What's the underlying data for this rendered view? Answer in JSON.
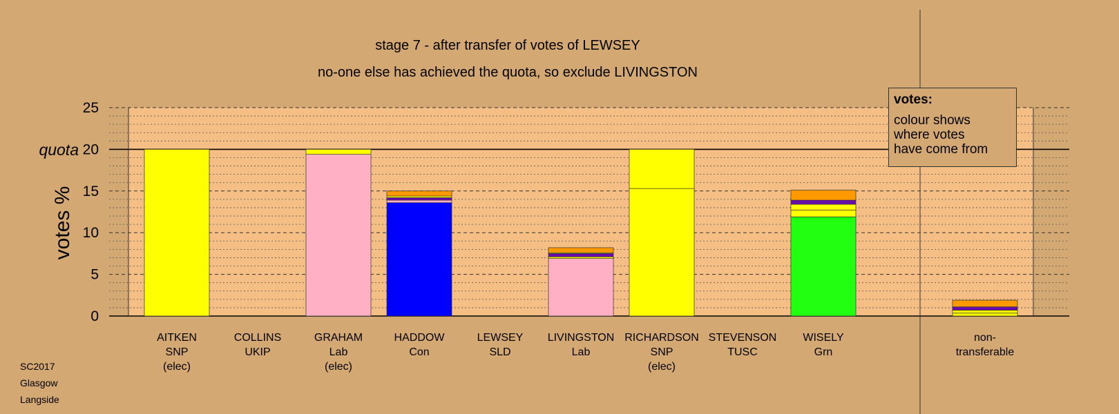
{
  "title": "stage 7 - after transfer of votes of LEWSEY",
  "subtitle": "no-one else has achieved the quota, so exclude LIVINGSTON",
  "legend": {
    "title": "votes:",
    "lines": [
      "colour shows",
      "where votes",
      "have come from"
    ]
  },
  "corner_info": [
    "SC2017",
    "Glasgow",
    "Langside"
  ],
  "colors": {
    "background": "#d4a873",
    "plot_background": "#f5be84",
    "SNP": "#ffff00",
    "Lab": "#ffb0c4",
    "Con": "#0000ff",
    "Grn": "#22ff11",
    "purple": "#6a0dad",
    "orange": "#ff9900"
  },
  "chart_data": {
    "type": "bar",
    "stacked": true,
    "ylabel": "votes %",
    "quota_label": "quota",
    "quota": 20,
    "ylim": [
      0,
      25
    ],
    "yticks": [
      0,
      5,
      10,
      15,
      20,
      25
    ],
    "grid": true,
    "categories": [
      {
        "name": "AITKEN",
        "party": "SNP",
        "status": "(elec)"
      },
      {
        "name": "COLLINS",
        "party": "UKIP",
        "status": ""
      },
      {
        "name": "GRAHAM",
        "party": "Lab",
        "status": "(elec)"
      },
      {
        "name": "HADDOW",
        "party": "Con",
        "status": ""
      },
      {
        "name": "LEWSEY",
        "party": "SLD",
        "status": ""
      },
      {
        "name": "LIVINGSTON",
        "party": "Lab",
        "status": ""
      },
      {
        "name": "RICHARDSON",
        "party": "SNP",
        "status": "(elec)"
      },
      {
        "name": "STEVENSON",
        "party": "TUSC",
        "status": ""
      },
      {
        "name": "WISELY",
        "party": "Grn",
        "status": ""
      },
      {
        "name": "",
        "party": "",
        "status": ""
      },
      {
        "name": "non-",
        "party": "transferable",
        "status": ""
      }
    ],
    "bars": [
      [
        {
          "value": 20.0,
          "color": "#ffff00"
        }
      ],
      [],
      [
        {
          "value": 19.4,
          "color": "#ffb0c4"
        },
        {
          "value": 0.6,
          "color": "#ffff00"
        }
      ],
      [
        {
          "value": 13.6,
          "color": "#0000ff"
        },
        {
          "value": 0.3,
          "color": "#ffb0c4"
        },
        {
          "value": 0.3,
          "color": "#6a0dad"
        },
        {
          "value": 0.2,
          "color": "#ffff00"
        },
        {
          "value": 0.6,
          "color": "#ff9900"
        }
      ],
      [],
      [
        {
          "value": 6.9,
          "color": "#ffb0c4"
        },
        {
          "value": 0.2,
          "color": "#ffff00"
        },
        {
          "value": 0.4,
          "color": "#6a0dad"
        },
        {
          "value": 0.1,
          "color": "#ffff00"
        },
        {
          "value": 0.6,
          "color": "#ff9900"
        }
      ],
      [
        {
          "value": 15.3,
          "color": "#ffff00"
        },
        {
          "value": 4.7,
          "color": "#ffff00"
        }
      ],
      [],
      [
        {
          "value": 11.9,
          "color": "#22ff11"
        },
        {
          "value": 0.8,
          "color": "#ffff00"
        },
        {
          "value": 0.7,
          "color": "#ffff00"
        },
        {
          "value": 0.5,
          "color": "#6a0dad"
        },
        {
          "value": 1.2,
          "color": "#ff9900"
        }
      ],
      [],
      [
        {
          "value": 0.35,
          "color": "#ffff00"
        },
        {
          "value": 0.35,
          "color": "#ffff00"
        },
        {
          "value": 0.4,
          "color": "#6a0dad"
        },
        {
          "value": 0.8,
          "color": "#ff9900"
        }
      ]
    ]
  }
}
